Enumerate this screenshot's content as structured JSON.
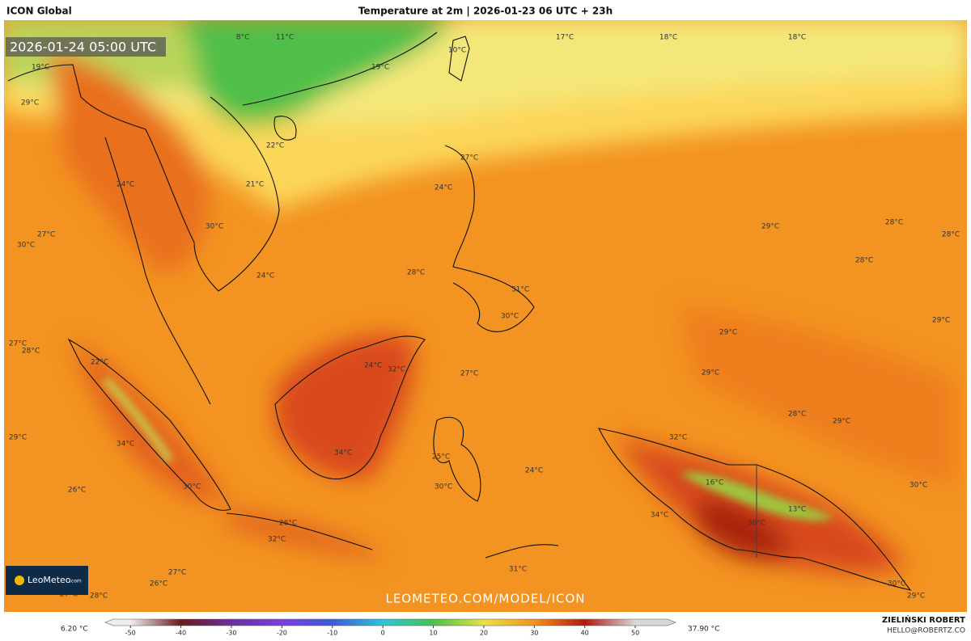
{
  "header": {
    "model": "ICON Global",
    "title": "Temperature at 2m | 2026-01-23 06 UTC + 23h"
  },
  "valid_time": "2026-01-24 05:00 UTC",
  "map_labels": [
    "8°C",
    "11°C",
    "17°C",
    "18°C",
    "18°C",
    "10°C",
    "19°C",
    "19°C",
    "29°C",
    "22°C",
    "27°C",
    "24°C",
    "21°C",
    "24°C",
    "30°C",
    "27°C",
    "30°C",
    "29°C",
    "28°C",
    "28°C",
    "28°C",
    "28°C",
    "24°C",
    "31°C",
    "30°C",
    "29°C",
    "29°C",
    "27°C",
    "28°C",
    "24°C",
    "32°C",
    "22°C",
    "27°C",
    "29°C",
    "28°C",
    "29°C",
    "29°C",
    "32°C",
    "34°C",
    "34°C",
    "25°C",
    "24°C",
    "16°C",
    "26°C",
    "30°C",
    "30°C",
    "30°C",
    "13°C",
    "34°C",
    "36°C",
    "26°C",
    "32°C",
    "27°C",
    "31°C",
    "26°C",
    "27°C",
    "28°C",
    "30°C",
    "29°C"
  ],
  "logo": {
    "name": "LeoMeteo",
    "suffix": ".com"
  },
  "watermark": "LEOMETEO.COM/MODEL/ICON",
  "colorbar": {
    "lim": [
      -55,
      58
    ],
    "ticks": [
      -50,
      -40,
      -30,
      -20,
      -10,
      0,
      10,
      20,
      30,
      40,
      50
    ],
    "min_label": "6.20 °C",
    "max_label": "37.90 °C"
  },
  "credits": {
    "author": "ZIELIŃSKI ROBERT",
    "email": "HELLO@ROBERTZ.CO"
  }
}
